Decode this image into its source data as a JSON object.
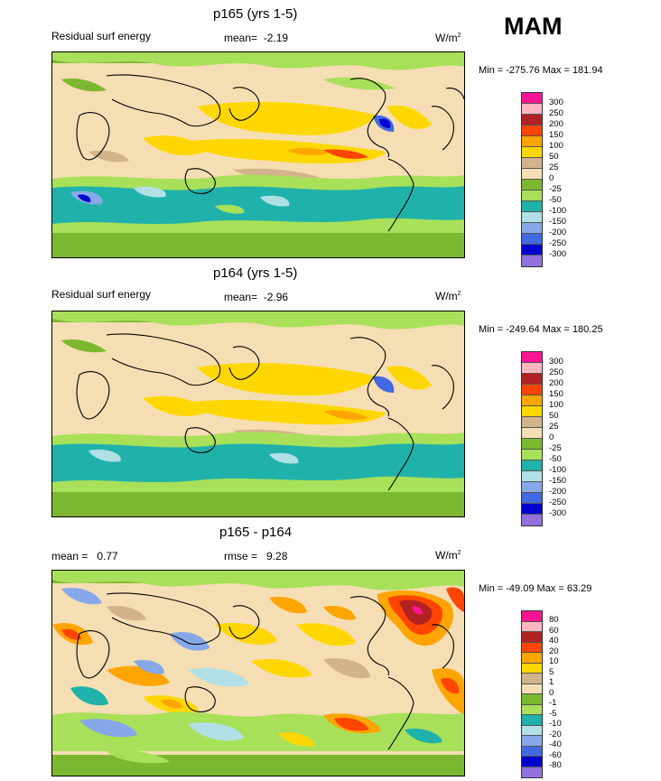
{
  "season": "MAM",
  "palette": {
    "c300": "#ff1493",
    "c250": "#ffb6c1",
    "c200": "#b22222",
    "c150": "#ff4500",
    "c100": "#ffa500",
    "c50": "#ffd700",
    "c25": "#d2b48c",
    "c0": "#f5deb3",
    "cm25": "#7cb82f",
    "cm50": "#a8e05a",
    "cm100": "#20b2aa",
    "cm150": "#b0e0e6",
    "cm200": "#87a8e8",
    "cm250": "#4169e1",
    "cm300": "#0000cd",
    "cm999": "#9370db"
  },
  "panels": [
    {
      "title": "p165 (yrs 1-5)",
      "left_label": "Residual surf energy",
      "stat_label": "mean=",
      "stat_value": "-2.19",
      "stat2_label": "",
      "stat2_value": "",
      "units": "W/m",
      "units_sup": "2",
      "minmax": "Min = -275.76 Max = 181.94",
      "levels": [
        "300",
        "250",
        "200",
        "150",
        "100",
        "50",
        "25",
        "0",
        "-25",
        "-50",
        "-100",
        "-150",
        "-200",
        "-250",
        "-300"
      ]
    },
    {
      "title": "p164 (yrs 1-5)",
      "left_label": "Residual surf energy",
      "stat_label": "mean=",
      "stat_value": "-2.96",
      "stat2_label": "",
      "stat2_value": "",
      "units": "W/m",
      "units_sup": "2",
      "minmax": "Min = -249.64 Max = 180.25",
      "levels": [
        "300",
        "250",
        "200",
        "150",
        "100",
        "50",
        "25",
        "0",
        "-25",
        "-50",
        "-100",
        "-150",
        "-200",
        "-250",
        "-300"
      ]
    },
    {
      "title": "p165 - p164",
      "left_label": "mean =",
      "left_value": "0.77",
      "stat_label": "rmse =",
      "stat_value": "9.28",
      "units": "W/m",
      "units_sup": "2",
      "minmax": "Min = -49.09 Max =  63.29",
      "levels": [
        "80",
        "60",
        "40",
        "20",
        "10",
        "5",
        "1",
        "0",
        "-1",
        "-5",
        "-10",
        "-20",
        "-40",
        "-60",
        "-80"
      ]
    }
  ]
}
